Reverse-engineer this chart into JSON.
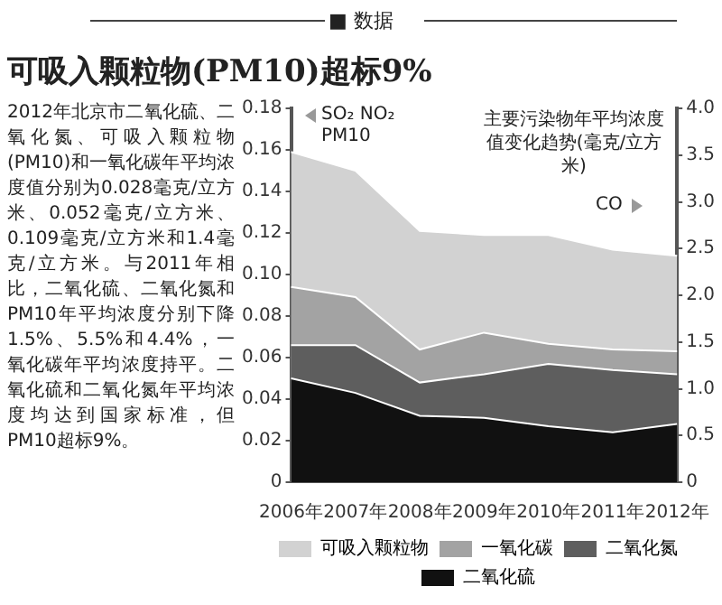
{
  "chart_data": {
    "type": "area",
    "title": "可吸入颗粒物(PM10)超标9%",
    "subtitle": "主要污染物年平均浓度值变化趋势(毫克/立方米)",
    "ylabel": "SO₂ NO₂ PM10",
    "y2label": "CO",
    "annotations": [
      "■ 数据",
      "2012年北京市二氧化硫、二氧化氮、可吸入颗粒物(PM10)和一氧化碳年平均浓度值分别为0.028毫克/立方米、0.052毫克/立方米、0.109毫克/立方米和1.4毫克/立方米。与2011年相比，二氧化硫、二氧化氮和PM10年平均浓度分别下降1.5%、5.5%和4.4%，一氧化碳年平均浓度持平。二氧化硫和二氧化氮年平均浓度均达到国家标准，但PM10超标9%。"
    ],
    "categories": [
      "2006年",
      "2007年",
      "2008年",
      "2009年",
      "2010年",
      "2011年",
      "2012年"
    ],
    "series": [
      {
        "name": "可吸入颗粒物",
        "color": "#d2d2d2",
        "values": [
          0.159,
          0.15,
          0.121,
          0.119,
          0.119,
          0.112,
          0.109
        ]
      },
      {
        "name": "一氧化碳",
        "color": "#a3a3a3",
        "axis": "y2",
        "values": [
          2.09,
          1.98,
          1.42,
          1.6,
          1.48,
          1.42,
          1.4
        ]
      },
      {
        "name": "二氧化氮",
        "color": "#5e5e5e",
        "values": [
          0.066,
          0.066,
          0.048,
          0.052,
          0.057,
          0.054,
          0.052
        ]
      },
      {
        "name": "二氧化硫",
        "color": "#111111",
        "values": [
          0.05,
          0.043,
          0.032,
          0.031,
          0.027,
          0.024,
          0.028
        ]
      }
    ],
    "ylim": [
      0,
      0.18
    ],
    "yticks": [
      0,
      0.02,
      0.04,
      0.06,
      0.08,
      {
        "value": 0.1,
        "label": "0.10"
      },
      0.12,
      0.14,
      0.16,
      0.18
    ],
    "y2lim": [
      0,
      4
    ],
    "y2ticks": [
      0,
      0.5,
      {
        "value": 1,
        "label": "1.0"
      },
      1.5,
      {
        "value": 2,
        "label": "2.0"
      },
      2.5,
      {
        "value": 3,
        "label": "3.0"
      },
      3.5,
      {
        "value": 4,
        "label": "4.0"
      }
    ],
    "legend": "bottom"
  }
}
